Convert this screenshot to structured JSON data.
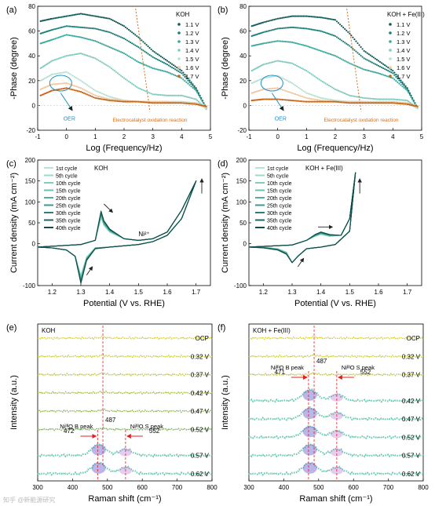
{
  "chart_data": [
    {
      "id": "a",
      "type": "scatter",
      "panel_label": "(a)",
      "xlabel": "Log (Frequency/Hz)",
      "ylabel": "-Phase (degree)",
      "xlim": [
        -1,
        5
      ],
      "ylim": [
        -20,
        80
      ],
      "xticks": [
        -1,
        0,
        1,
        2,
        3,
        4,
        5
      ],
      "yticks": [
        -20,
        0,
        20,
        40,
        60,
        80
      ],
      "legend_title": "KOH",
      "legend_position": "top-right",
      "annotations": [
        "OER",
        "Electrocatalyst oxidation reaction"
      ],
      "series": [
        {
          "name": "1.1 V",
          "color": "#0f5c58",
          "x": [
            -0.9,
            -0.5,
            0,
            0.5,
            1,
            1.5,
            2,
            2.5,
            3,
            3.5,
            4,
            4.5,
            4.9
          ],
          "y": [
            68,
            70,
            72,
            74,
            72,
            70,
            64,
            55,
            44,
            36,
            28,
            14,
            -4
          ]
        },
        {
          "name": "1.2 V",
          "color": "#1b7f78",
          "x": [
            -0.9,
            -0.5,
            0,
            0.5,
            1,
            1.5,
            2,
            2.5,
            3,
            3.5,
            4,
            4.5,
            4.9
          ],
          "y": [
            58,
            61,
            64,
            63,
            62,
            59,
            54,
            47,
            39,
            33,
            26,
            13,
            -4
          ]
        },
        {
          "name": "1.3 V",
          "color": "#3aa89c",
          "x": [
            -0.9,
            -0.5,
            0,
            0.5,
            1,
            1.5,
            2,
            2.5,
            3,
            3.5,
            4,
            4.5,
            4.9
          ],
          "y": [
            50,
            53,
            57,
            55,
            52,
            47,
            42,
            35,
            30,
            27,
            22,
            12,
            -4
          ]
        },
        {
          "name": "1.4 V",
          "color": "#7fcbbe",
          "x": [
            -0.9,
            -0.5,
            0,
            0.5,
            1,
            1.5,
            2,
            2.5,
            3,
            3.5,
            4,
            4.5,
            4.9
          ],
          "y": [
            30,
            36,
            40,
            42,
            38,
            31,
            22,
            14,
            9,
            8,
            8,
            5,
            -4
          ]
        },
        {
          "name": "1.5 V",
          "color": "#b7e0d0",
          "x": [
            -0.9,
            -0.5,
            0,
            0.5,
            1,
            1.5,
            2,
            2.5,
            3,
            3.5,
            4,
            4.5,
            4.9
          ],
          "y": [
            20,
            25,
            27,
            20,
            12,
            7,
            4,
            3,
            3,
            3,
            3,
            2,
            -3
          ]
        },
        {
          "name": "1.6 V",
          "color": "#f0c8a0",
          "x": [
            -0.9,
            -0.5,
            0,
            0.5,
            1,
            1.5,
            2,
            2.5,
            3,
            3.5,
            4,
            4.5,
            4.9
          ],
          "y": [
            13,
            17,
            18,
            14,
            8,
            5,
            4,
            3,
            3,
            3,
            2,
            2,
            -2
          ]
        },
        {
          "name": "1.7 V",
          "color": "#c86414",
          "x": [
            -0.9,
            -0.5,
            0,
            0.5,
            1,
            1.5,
            2,
            2.5,
            3,
            3.5,
            4,
            4.5,
            4.9
          ],
          "y": [
            8,
            12,
            14,
            11,
            6,
            4,
            3,
            3,
            2,
            2,
            2,
            1,
            -1
          ]
        }
      ]
    },
    {
      "id": "b",
      "type": "scatter",
      "panel_label": "(b)",
      "xlabel": "Log (Frequency/Hz)",
      "ylabel": "-Phase (degree)",
      "xlim": [
        -1,
        5
      ],
      "ylim": [
        -20,
        80
      ],
      "xticks": [
        -1,
        0,
        1,
        2,
        3,
        4,
        5
      ],
      "yticks": [
        -20,
        0,
        20,
        40,
        60,
        80
      ],
      "legend_title": "KOH + Fe(III)",
      "legend_position": "top-right",
      "annotations": [
        "OER",
        "Electrocatalyst oxidation reaction"
      ],
      "series": [
        {
          "name": "1.1 V",
          "color": "#0f5c58",
          "x": [
            -0.9,
            -0.5,
            0,
            0.5,
            1,
            1.5,
            2,
            2.5,
            3,
            3.5,
            4,
            4.5,
            4.9
          ],
          "y": [
            64,
            67,
            70,
            72,
            72,
            71,
            69,
            58,
            44,
            36,
            28,
            14,
            -4
          ]
        },
        {
          "name": "1.2 V",
          "color": "#1b7f78",
          "x": [
            -0.9,
            -0.5,
            0,
            0.5,
            1,
            1.5,
            2,
            2.5,
            3,
            3.5,
            4,
            4.5,
            4.9
          ],
          "y": [
            56,
            59,
            62,
            63,
            62,
            60,
            56,
            48,
            38,
            32,
            26,
            13,
            -4
          ]
        },
        {
          "name": "1.3 V",
          "color": "#3aa89c",
          "x": [
            -0.9,
            -0.5,
            0,
            0.5,
            1,
            1.5,
            2,
            2.5,
            3,
            3.5,
            4,
            4.5,
            4.9
          ],
          "y": [
            48,
            50,
            52,
            51,
            48,
            44,
            40,
            34,
            29,
            26,
            22,
            12,
            -4
          ]
        },
        {
          "name": "1.4 V",
          "color": "#7fcbbe",
          "x": [
            -0.9,
            -0.5,
            0,
            0.5,
            1,
            1.5,
            2,
            2.5,
            3,
            3.5,
            4,
            4.5,
            4.9
          ],
          "y": [
            28,
            33,
            36,
            34,
            28,
            20,
            13,
            8,
            6,
            5,
            5,
            4,
            -3
          ]
        },
        {
          "name": "1.5 V",
          "color": "#b7e0d0",
          "x": [
            -0.9,
            -0.5,
            0,
            0.5,
            1,
            1.5,
            2,
            2.5,
            3,
            3.5,
            4,
            4.5,
            4.9
          ],
          "y": [
            18,
            22,
            24,
            18,
            10,
            6,
            4,
            3,
            3,
            3,
            3,
            2,
            -3
          ]
        },
        {
          "name": "1.6 V",
          "color": "#f0c8a0",
          "x": [
            -0.9,
            -0.5,
            0,
            0.5,
            1,
            1.5,
            2,
            2.5,
            3,
            3.5,
            4,
            4.5,
            4.9
          ],
          "y": [
            10,
            13,
            14,
            10,
            6,
            4,
            3,
            3,
            3,
            2,
            2,
            2,
            -2
          ]
        },
        {
          "name": "1.7 V",
          "color": "#c86414",
          "x": [
            -0.9,
            -0.5,
            0,
            0.5,
            1,
            1.5,
            2,
            2.5,
            3,
            3.5,
            4,
            4.5,
            4.9
          ],
          "y": [
            4,
            5,
            5,
            4,
            3,
            3,
            3,
            2,
            2,
            2,
            2,
            1,
            -1
          ]
        }
      ]
    },
    {
      "id": "c",
      "type": "line",
      "panel_label": "(c)",
      "xlabel": "Potential (V vs. RHE)",
      "ylabel": "Current density (mA cm⁻²)",
      "xlim": [
        1.15,
        1.75
      ],
      "ylim": [
        -100,
        200
      ],
      "xticks": [
        1.2,
        1.3,
        1.4,
        1.5,
        1.6,
        1.7
      ],
      "yticks": [
        -100,
        0,
        50,
        100,
        150,
        200
      ],
      "legend_title": "KOH",
      "legend_position": "top-left",
      "annotations": [
        "Ni²⁺"
      ],
      "series_names": [
        "1st cycle",
        "5th cycle",
        "10th cycle",
        "15th cycle",
        "20th cycle",
        "25th cycle",
        "30th cycle",
        "35th cycle",
        "40th cycle"
      ],
      "colors": [
        "#b4e4da",
        "#9bd8cc",
        "#82ccbe",
        "#69c0b0",
        "#50b0a0",
        "#3a9a8c",
        "#2a8078",
        "#1c6662",
        "#0f4c4a"
      ],
      "forward": {
        "x": [
          1.15,
          1.3,
          1.35,
          1.37,
          1.38,
          1.4,
          1.45,
          1.5,
          1.55,
          1.6,
          1.65,
          1.7
        ],
        "y": [
          -8,
          -2,
          8,
          78,
          55,
          35,
          12,
          8,
          12,
          28,
          80,
          150
        ]
      },
      "reverse": {
        "x": [
          1.7,
          1.65,
          1.6,
          1.55,
          1.5,
          1.45,
          1.4,
          1.35,
          1.32,
          1.3,
          1.28,
          1.25,
          1.2,
          1.15
        ],
        "y": [
          150,
          60,
          20,
          5,
          -2,
          -5,
          -8,
          -12,
          -40,
          -95,
          -30,
          -15,
          -10,
          -8
        ]
      }
    },
    {
      "id": "d",
      "type": "line",
      "panel_label": "(d)",
      "xlabel": "Potential (V vs. RHE)",
      "ylabel": "Current density (mA cm⁻²)",
      "xlim": [
        1.15,
        1.75
      ],
      "ylim": [
        -100,
        200
      ],
      "xticks": [
        1.2,
        1.3,
        1.4,
        1.5,
        1.6,
        1.7
      ],
      "yticks": [
        -100,
        0,
        50,
        100,
        150,
        200
      ],
      "legend_title": "KOH + Fe(III)",
      "legend_position": "top-left",
      "annotations": [],
      "series_names": [
        "1st cycle",
        "5th cycle",
        "10th cycle",
        "15th cycle",
        "20th cycle",
        "25th cycle",
        "30th cycle",
        "35th cycle",
        "40th cycle"
      ],
      "colors": [
        "#b4e4da",
        "#9bd8cc",
        "#82ccbe",
        "#69c0b0",
        "#50b0a0",
        "#3a9a8c",
        "#2a8078",
        "#1c6662",
        "#0f4c4a"
      ],
      "forward": {
        "x": [
          1.15,
          1.3,
          1.35,
          1.38,
          1.4,
          1.43,
          1.47,
          1.5,
          1.52
        ],
        "y": [
          -8,
          -3,
          8,
          22,
          28,
          22,
          20,
          60,
          170
        ]
      },
      "reverse": {
        "x": [
          1.52,
          1.5,
          1.45,
          1.4,
          1.35,
          1.32,
          1.3,
          1.28,
          1.25,
          1.2,
          1.15
        ],
        "y": [
          170,
          30,
          -2,
          -8,
          -12,
          -30,
          -45,
          -25,
          -15,
          -10,
          -8
        ]
      }
    },
    {
      "id": "e",
      "type": "line",
      "panel_label": "(e)",
      "xlabel": "Raman shift (cm⁻¹)",
      "ylabel": "Intensity (a.u.)",
      "xlim": [
        300,
        800
      ],
      "xticks": [
        300,
        400,
        500,
        600,
        700,
        800
      ],
      "legend_title": "KOH",
      "reference_line_x": 487,
      "spectra": [
        "OCP",
        "0.32 V",
        "0.37 V",
        "0.42 V",
        "0.47 V",
        "0.52 V",
        "0.57 V",
        "0.62 V"
      ],
      "peaks": [
        {
          "position": 472,
          "label": "NiᴵᴵᴵO B peak"
        },
        {
          "position": 552,
          "label": "NiᴵᴵᴵO S peak"
        }
      ],
      "peak_labels": [
        "472",
        "487",
        "552"
      ]
    },
    {
      "id": "f",
      "type": "line",
      "panel_label": "(f)",
      "xlabel": "Raman shift (cm⁻¹)",
      "ylabel": "Intensity (a.u.)",
      "xlim": [
        300,
        800
      ],
      "xticks": [
        300,
        400,
        500,
        600,
        700,
        800
      ],
      "legend_title": "KOH + Fe(III)",
      "reference_line_x": 487,
      "spectra": [
        "OCP",
        "0.32 V",
        "0.37 V",
        "0.42 V",
        "0.47 V",
        "0.52 V",
        "0.57 V",
        "0.62 V"
      ],
      "peaks": [
        {
          "position": 471,
          "label": "NiᴵᴵᴵO B peak"
        },
        {
          "position": 552,
          "label": "NiᴵᴵᴵO S peak"
        }
      ],
      "peak_labels": [
        "471",
        "487",
        "552"
      ]
    }
  ],
  "watermark": "知乎 @新能源研究"
}
